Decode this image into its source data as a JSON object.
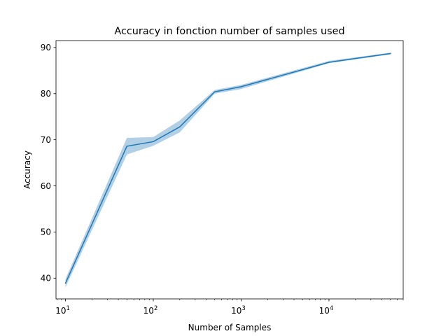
{
  "chart_data": {
    "type": "line",
    "title": "Accuracy in fonction number of samples used",
    "xlabel": "Number of Samples",
    "ylabel": "Accuracy",
    "xscale": "log",
    "xlim": [
      7.8,
      70000
    ],
    "ylim": [
      35.5,
      91.5
    ],
    "grid": false,
    "x_ticks": [
      {
        "value": 10,
        "base": "10",
        "exp": "1"
      },
      {
        "value": 100,
        "base": "10",
        "exp": "2"
      },
      {
        "value": 1000,
        "base": "10",
        "exp": "3"
      },
      {
        "value": 10000,
        "base": "10",
        "exp": "4"
      }
    ],
    "y_ticks": [
      40,
      50,
      60,
      70,
      80,
      90
    ],
    "series": [
      {
        "color": "#1f77b4",
        "band_color": "#1f77b4",
        "x": [
          10,
          50,
          100,
          200,
          500,
          1000,
          10000,
          50000
        ],
        "y": [
          38.9,
          68.6,
          69.6,
          72.8,
          80.4,
          81.5,
          86.8,
          88.7
        ],
        "lower": [
          38.0,
          66.8,
          68.7,
          71.6,
          80.0,
          81.0,
          86.6,
          88.5
        ],
        "upper": [
          39.8,
          70.4,
          70.6,
          74.2,
          80.8,
          81.9,
          87.1,
          88.9
        ]
      }
    ]
  }
}
